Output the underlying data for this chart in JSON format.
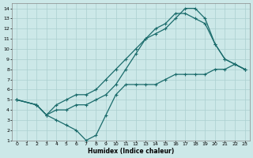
{
  "xlabel": "Humidex (Indice chaleur)",
  "ylabel": "",
  "xlim": [
    -0.5,
    23.5
  ],
  "ylim": [
    1,
    14.5
  ],
  "xticks": [
    0,
    1,
    2,
    3,
    4,
    5,
    6,
    7,
    8,
    9,
    10,
    11,
    12,
    13,
    14,
    15,
    16,
    17,
    18,
    19,
    20,
    21,
    22,
    23
  ],
  "yticks": [
    1,
    2,
    3,
    4,
    5,
    6,
    7,
    8,
    9,
    10,
    11,
    12,
    13,
    14
  ],
  "bg_color": "#cce8e8",
  "grid_color": "#aacfcf",
  "line_color": "#1a6b6b",
  "curve1_x": [
    0,
    2,
    3,
    4,
    5,
    6,
    7,
    8,
    9,
    10,
    11,
    12,
    13,
    14,
    15,
    16,
    17,
    18,
    19,
    20,
    21,
    22,
    23
  ],
  "curve1_y": [
    5,
    4.5,
    3.5,
    3,
    2.5,
    2,
    1,
    1.5,
    3.5,
    5.5,
    6.5,
    6.5,
    6.5,
    6.5,
    7,
    7.5,
    7.5,
    7.5,
    7.5,
    8,
    8,
    8.5,
    8
  ],
  "curve2_x": [
    0,
    2,
    3,
    4,
    5,
    6,
    7,
    8,
    9,
    10,
    11,
    12,
    13,
    14,
    15,
    16,
    17,
    18,
    19,
    20,
    21,
    22,
    23
  ],
  "curve2_y": [
    5,
    4.5,
    3.5,
    4,
    4,
    4.5,
    4.5,
    5,
    5.5,
    6.5,
    8,
    9.5,
    11,
    11.5,
    12,
    13,
    14,
    14,
    13,
    10.5,
    9,
    8.5,
    8
  ],
  "curve3_x": [
    0,
    2,
    3,
    4,
    5,
    6,
    7,
    8,
    9,
    10,
    11,
    12,
    13,
    14,
    15,
    16,
    17,
    18,
    19,
    20,
    21,
    22,
    23
  ],
  "curve3_y": [
    5,
    4.5,
    3.5,
    4.5,
    5,
    5.5,
    5.5,
    6,
    7,
    8,
    9,
    10,
    11,
    12,
    12.5,
    13.5,
    13.5,
    13,
    12.5,
    10.5,
    9,
    8.5,
    8
  ],
  "marker": "+",
  "markersize": 3,
  "linewidth": 0.9
}
